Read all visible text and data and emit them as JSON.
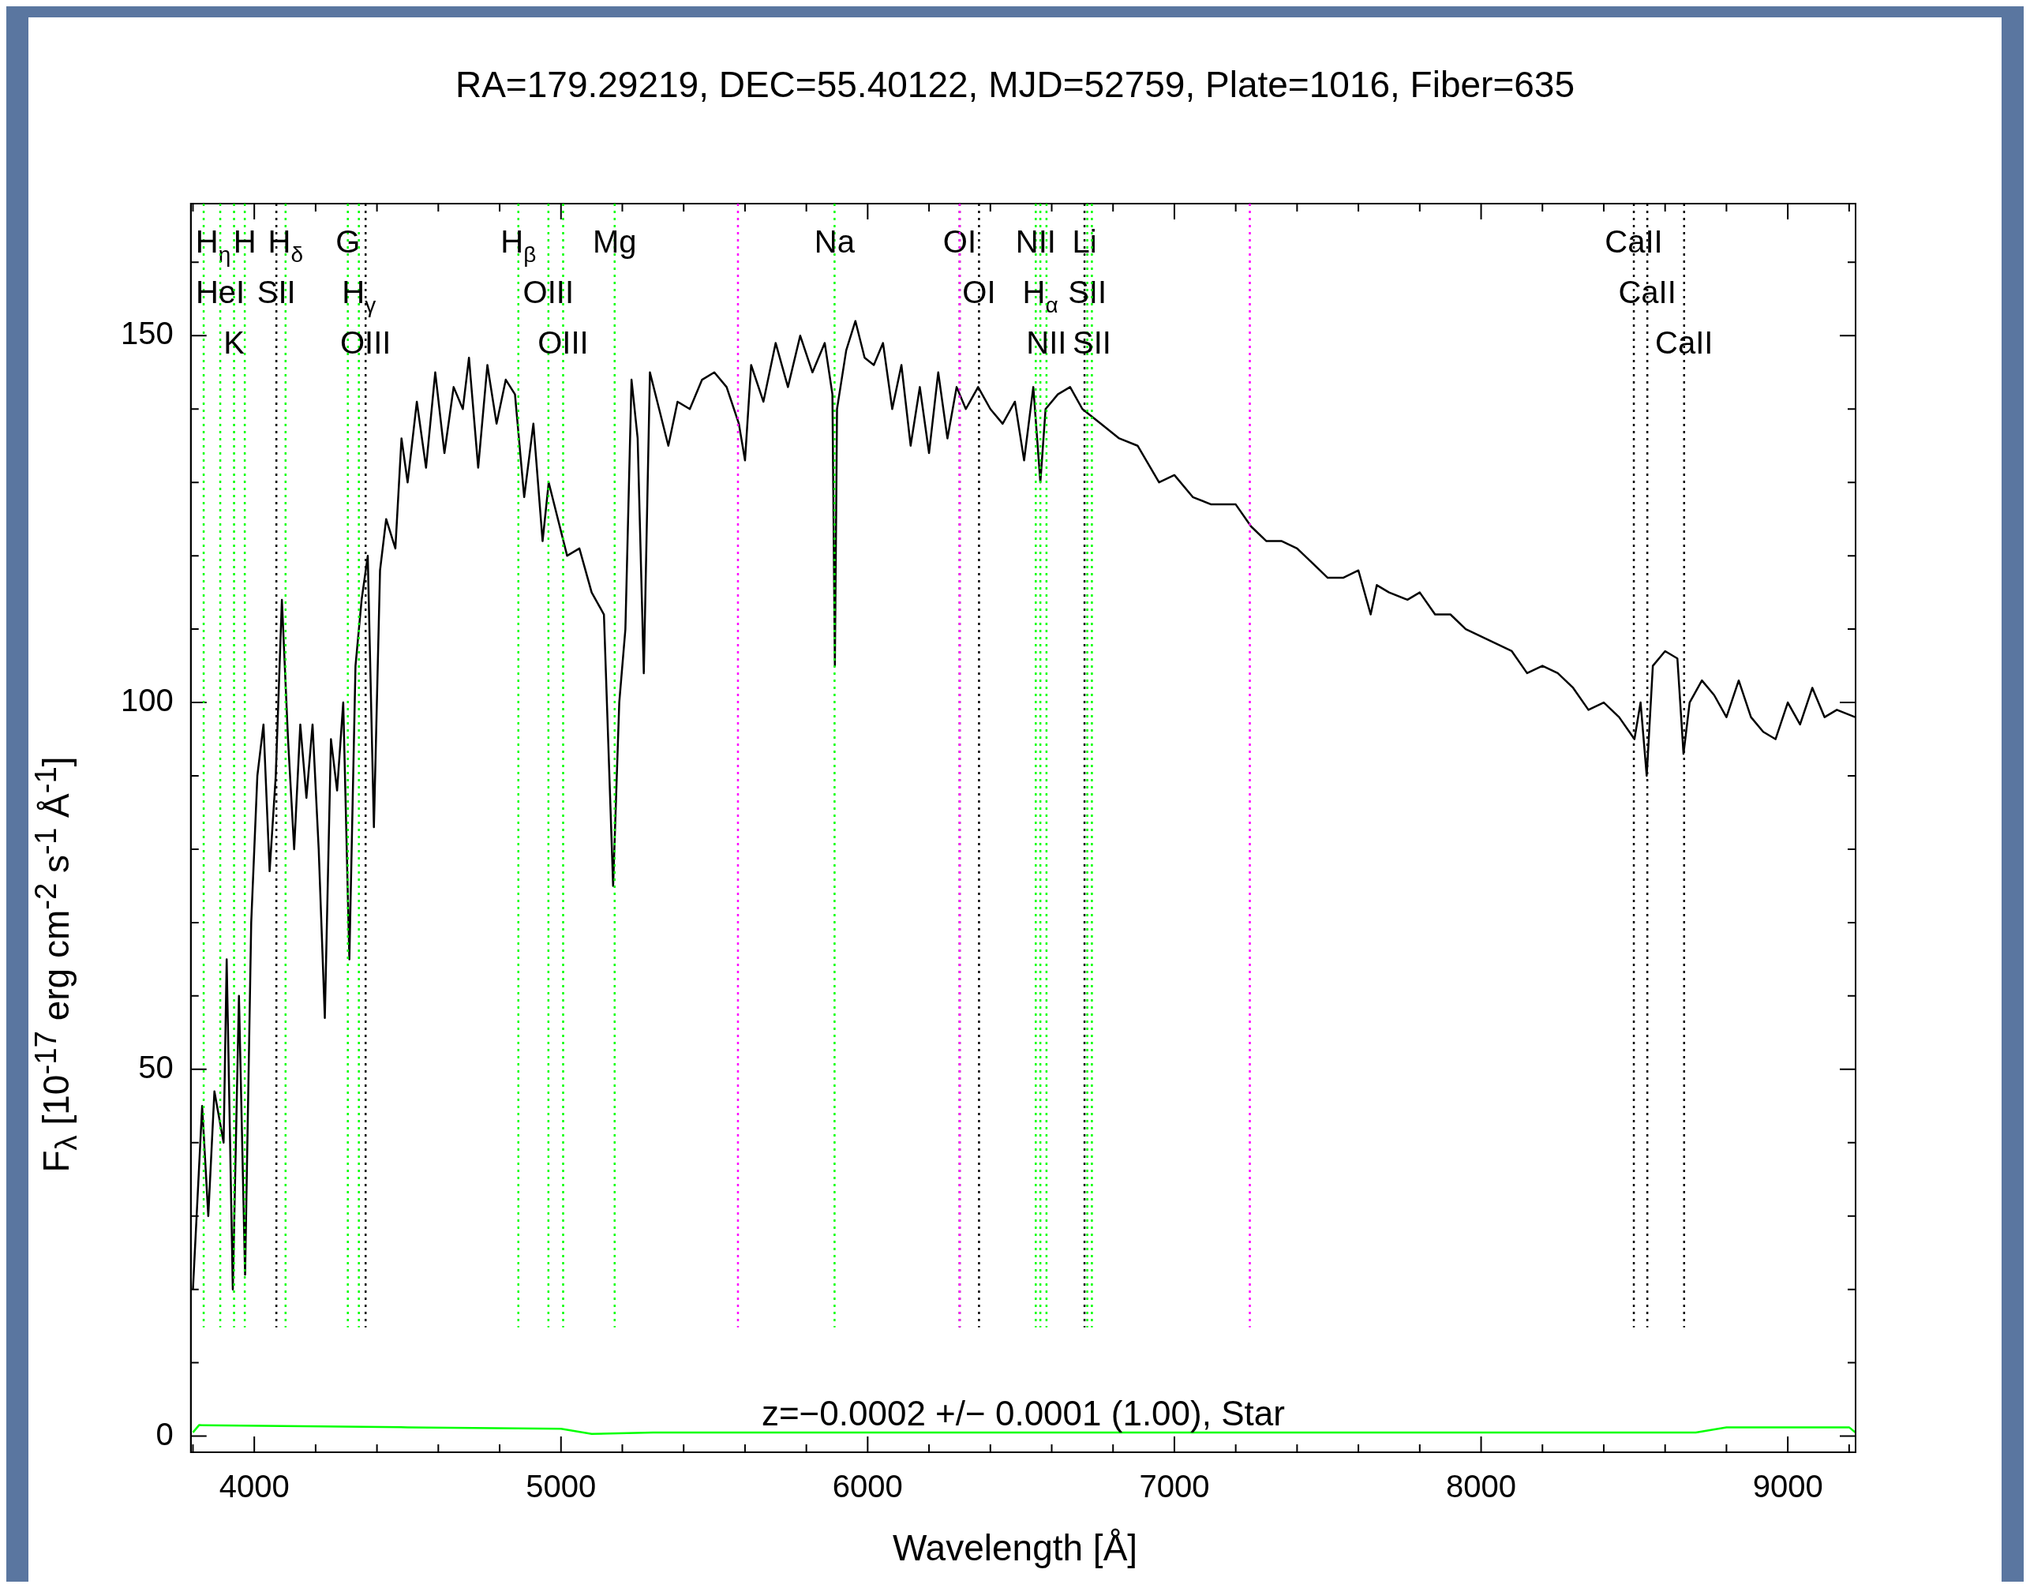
{
  "chart_data": {
    "type": "line",
    "title": "RA=179.29219, DEC=55.40122, MJD=52759, Plate=1016, Fiber=635",
    "xlabel": "Wavelength [Å]",
    "ylabel": "F$_{λ}$ [10$^{-17}$ erg cm$^{-2}$ s$^{-1}$ Å$^{-1}$]",
    "xlim": [
      3793,
      9221
    ],
    "ylim": [
      -2.2,
      168
    ],
    "xticks": [
      {
        "value": 3800,
        "label": null
      },
      4000,
      {
        "value": 4200,
        "label": null
      },
      {
        "value": 4400,
        "label": null
      },
      {
        "value": 4600,
        "label": null
      },
      {
        "value": 4800,
        "label": null
      },
      5000,
      {
        "value": 5200,
        "label": null
      },
      {
        "value": 5400,
        "label": null
      },
      {
        "value": 5600,
        "label": null
      },
      {
        "value": 5800,
        "label": null
      },
      6000,
      {
        "value": 6200,
        "label": null
      },
      {
        "value": 6400,
        "label": null
      },
      {
        "value": 6600,
        "label": null
      },
      {
        "value": 6800,
        "label": null
      },
      7000,
      {
        "value": 7200,
        "label": null
      },
      {
        "value": 7400,
        "label": null
      },
      {
        "value": 7600,
        "label": null
      },
      {
        "value": 7800,
        "label": null
      },
      8000,
      {
        "value": 8200,
        "label": null
      },
      {
        "value": 8400,
        "label": null
      },
      {
        "value": 8600,
        "label": null
      },
      {
        "value": 8800,
        "label": null
      },
      9000,
      {
        "value": 9200,
        "label": null
      }
    ],
    "yticks": [
      0,
      {
        "value": 10,
        "label": null
      },
      {
        "value": 20,
        "label": null
      },
      {
        "value": 30,
        "label": null
      },
      {
        "value": 40,
        "label": null
      },
      50,
      {
        "value": 60,
        "label": null
      },
      {
        "value": 70,
        "label": null
      },
      {
        "value": 80,
        "label": null
      },
      {
        "value": 90,
        "label": null
      },
      100,
      {
        "value": 110,
        "label": null
      },
      {
        "value": 120,
        "label": null
      },
      {
        "value": 130,
        "label": null
      },
      {
        "value": 140,
        "label": null
      },
      150,
      {
        "value": 160,
        "label": null
      }
    ],
    "series": [
      {
        "type": "line",
        "color": "#000000",
        "x": [
          3800,
          3830,
          3850,
          3870,
          3900,
          3910,
          3930,
          3950,
          3970,
          3990,
          4010,
          4030,
          4050,
          4070,
          4090,
          4110,
          4130,
          4150,
          4170,
          4190,
          4210,
          4230,
          4250,
          4270,
          4290,
          4310,
          4330,
          4350,
          4370,
          4390,
          4410,
          4430,
          4460,
          4480,
          4500,
          4530,
          4560,
          4590,
          4620,
          4650,
          4680,
          4700,
          4730,
          4760,
          4790,
          4820,
          4850,
          4880,
          4910,
          4940,
          4960,
          4990,
          5020,
          5060,
          5100,
          5140,
          5170,
          5190,
          5210,
          5230,
          5250,
          5270,
          5290,
          5320,
          5350,
          5380,
          5420,
          5460,
          5500,
          5540,
          5580,
          5600,
          5620,
          5660,
          5700,
          5740,
          5780,
          5820,
          5860,
          5885,
          5893,
          5900,
          5930,
          5960,
          5990,
          6020,
          6050,
          6080,
          6110,
          6140,
          6170,
          6200,
          6230,
          6260,
          6290,
          6320,
          6360,
          6400,
          6440,
          6480,
          6510,
          6540,
          6563,
          6580,
          6620,
          6660,
          6700,
          6760,
          6820,
          6880,
          6950,
          7000,
          7060,
          7120,
          7200,
          7250,
          7300,
          7350,
          7400,
          7450,
          7500,
          7550,
          7600,
          7640,
          7660,
          7700,
          7760,
          7800,
          7850,
          7900,
          7950,
          8000,
          8050,
          8100,
          8150,
          8200,
          8250,
          8300,
          8350,
          8400,
          8450,
          8500,
          8520,
          8540,
          8560,
          8600,
          8640,
          8660,
          8680,
          8720,
          8760,
          8800,
          8840,
          8880,
          8920,
          8960,
          9000,
          9040,
          9080,
          9120,
          9160,
          9220
        ],
        "values": [
          20,
          45,
          30,
          47,
          40,
          65,
          20,
          60,
          22,
          70,
          90,
          97,
          77,
          90,
          114,
          95,
          80,
          97,
          87,
          97,
          80,
          57,
          95,
          88,
          100,
          65,
          105,
          114,
          120,
          83,
          118,
          125,
          121,
          136,
          130,
          141,
          132,
          145,
          134,
          143,
          140,
          147,
          132,
          146,
          138,
          144,
          142,
          128,
          138,
          122,
          130,
          125,
          120,
          121,
          115,
          112,
          75,
          100,
          110,
          144,
          136,
          104,
          145,
          140,
          135,
          141,
          140,
          144,
          145,
          143,
          138,
          133,
          146,
          141,
          149,
          143,
          150,
          145,
          149,
          142,
          105,
          140,
          148,
          152,
          147,
          146,
          149,
          140,
          146,
          135,
          143,
          134,
          145,
          136,
          143,
          140,
          143,
          140,
          138,
          141,
          133,
          143,
          130,
          140,
          142,
          143,
          140,
          138,
          136,
          135,
          130,
          131,
          128,
          127,
          127,
          124,
          122,
          122,
          121,
          119,
          117,
          117,
          118,
          112,
          116,
          115,
          114,
          115,
          112,
          112,
          110,
          109,
          108,
          107,
          104,
          105,
          104,
          102,
          99,
          100,
          98,
          95,
          100,
          90,
          105,
          107,
          106,
          93,
          100,
          103,
          101,
          98,
          103,
          98,
          96,
          95,
          100,
          97,
          102,
          98,
          99,
          98
        ]
      },
      {
        "type": "line",
        "color": "#00ff00",
        "x": [
          3800,
          3820,
          4500,
          5000,
          5100,
          5300,
          8700,
          8800,
          9200,
          9220
        ],
        "values": [
          0.5,
          1.5,
          1.2,
          1,
          0.3,
          0.5,
          0.5,
          1.2,
          1.2,
          0.5
        ]
      }
    ],
    "ref_lines": [
      {
        "axis": "x",
        "value": 3835,
        "label": "H$_{η}$",
        "color": "#00ff00",
        "line_style": "dotted"
      },
      {
        "axis": "x",
        "value": 3889,
        "label": "HeI",
        "color": "#00ff00",
        "line_style": "dotted"
      },
      {
        "axis": "x",
        "value": 3934,
        "label": "K",
        "color": "#00ff00",
        "line_style": "dotted"
      },
      {
        "axis": "x",
        "value": 3969,
        "label": "H",
        "color": "#00ff00",
        "line_style": "dotted"
      },
      {
        "axis": "x",
        "value": 4072,
        "label": "SII",
        "color": "#000000",
        "line_style": "dotted"
      },
      {
        "axis": "x",
        "value": 4102,
        "label": "H$_{δ}$",
        "color": "#00ff00",
        "line_style": "dotted"
      },
      {
        "axis": "x",
        "value": 4305,
        "label": "G",
        "color": "#00ff00",
        "line_style": "dotted"
      },
      {
        "axis": "x",
        "value": 4341,
        "label": "H$_{γ}$",
        "color": "#00ff00",
        "line_style": "dotted"
      },
      {
        "axis": "x",
        "value": 4363,
        "label": "OIII",
        "color": "#000000",
        "line_style": "dotted"
      },
      {
        "axis": "x",
        "value": 4861,
        "label": "H$_{β}$",
        "color": "#00ff00",
        "line_style": "dotted"
      },
      {
        "axis": "x",
        "value": 4959,
        "label": "OIII",
        "color": "#00ff00",
        "line_style": "dotted"
      },
      {
        "axis": "x",
        "value": 5007,
        "label": "OIII",
        "color": "#00ff00",
        "line_style": "dotted"
      },
      {
        "axis": "x",
        "value": 5175,
        "label": "Mg",
        "color": "#00ff00",
        "line_style": "dotted"
      },
      {
        "axis": "x",
        "value": 5577,
        "color": "#ff00ff",
        "line_style": "dotted"
      },
      {
        "axis": "x",
        "value": 5892,
        "label": "Na",
        "color": "#00ff00",
        "line_style": "dotted"
      },
      {
        "axis": "x",
        "value": 6300,
        "label": "OI",
        "color": "#000000",
        "line_style": "dotted"
      },
      {
        "axis": "x",
        "value": 6300,
        "color": "#ff00ff",
        "line_style": "dotted"
      },
      {
        "axis": "x",
        "value": 6363,
        "label": "OI",
        "color": "#000000",
        "line_style": "dotted"
      },
      {
        "axis": "x",
        "value": 6548,
        "label": "NII",
        "color": "#00ff00",
        "line_style": "dotted"
      },
      {
        "axis": "x",
        "value": 6563,
        "label": "H$_{α}$",
        "color": "#00ff00",
        "line_style": "dotted"
      },
      {
        "axis": "x",
        "value": 6583,
        "label": "NII",
        "color": "#00ff00",
        "line_style": "dotted"
      },
      {
        "axis": "x",
        "value": 6707,
        "label": "Li",
        "color": "#000000",
        "line_style": "dotted"
      },
      {
        "axis": "x",
        "value": 6716,
        "label": "SII",
        "color": "#00ff00",
        "line_style": "dotted"
      },
      {
        "axis": "x",
        "value": 6731,
        "label": "SII",
        "color": "#00ff00",
        "line_style": "dotted"
      },
      {
        "axis": "x",
        "value": 7246,
        "color": "#ff00ff",
        "line_style": "dotted"
      },
      {
        "axis": "x",
        "value": 8498,
        "label": "CaII",
        "color": "#000000",
        "line_style": "dotted"
      },
      {
        "axis": "x",
        "value": 8542,
        "label": "CaII",
        "color": "#000000",
        "line_style": "dotted"
      },
      {
        "axis": "x",
        "value": 8662,
        "label": "CaII",
        "color": "#000000",
        "line_style": "dotted"
      }
    ],
    "annotations": [
      "z=−0.0002 +/− 0.0001 (1.00), Star"
    ]
  }
}
